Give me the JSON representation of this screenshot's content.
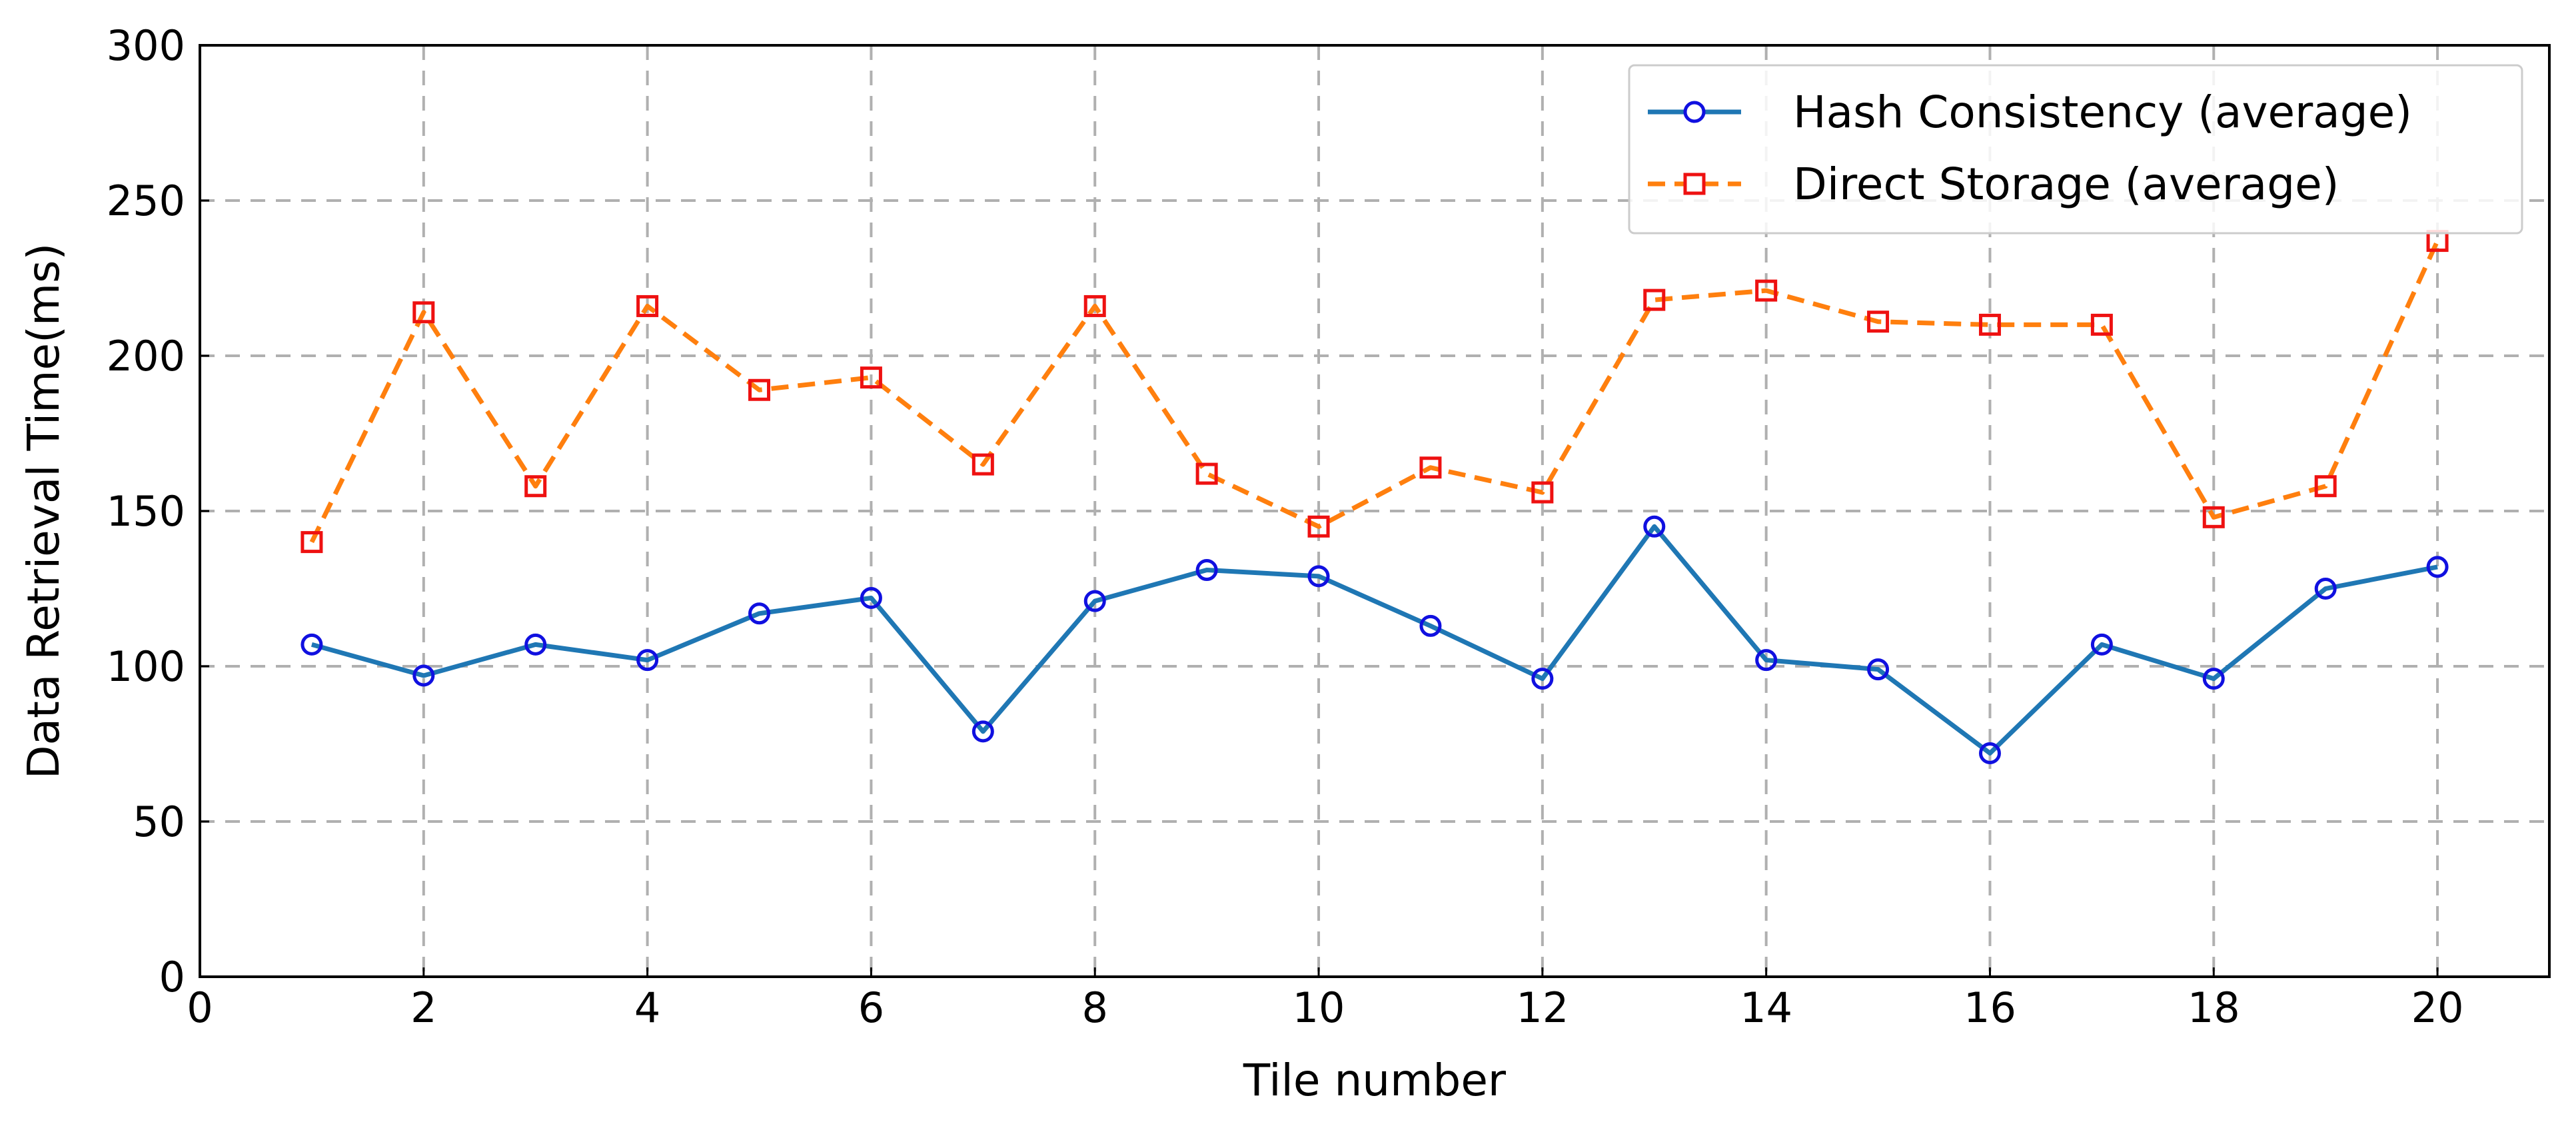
{
  "chart_data": {
    "type": "line",
    "title": "",
    "xlabel": "Tile number",
    "ylabel": "Data Retrieval Time(ms)",
    "xlim": [
      0,
      21
    ],
    "ylim": [
      0,
      300
    ],
    "x_ticks": [
      0,
      2,
      4,
      6,
      8,
      10,
      12,
      14,
      16,
      18,
      20
    ],
    "y_ticks": [
      0,
      50,
      100,
      150,
      200,
      250,
      300
    ],
    "grid": true,
    "legend_position": "top-right",
    "x": [
      1,
      2,
      3,
      4,
      5,
      6,
      7,
      8,
      9,
      10,
      11,
      12,
      13,
      14,
      15,
      16,
      17,
      18,
      19,
      20
    ],
    "series": [
      {
        "name": "Hash Consistency (average)",
        "line_color": "#1f77b4",
        "marker_color": "#1010e0",
        "line_style": "solid",
        "marker": "circle",
        "values": [
          107,
          97,
          107,
          102,
          117,
          122,
          79,
          121,
          131,
          129,
          113,
          96,
          145,
          102,
          99,
          72,
          107,
          96,
          125,
          132
        ]
      },
      {
        "name": "Direct Storage (average)",
        "line_color": "#ff7f0e",
        "marker_color": "#ee1111",
        "line_style": "dashed",
        "marker": "square",
        "values": [
          140,
          214,
          158,
          216,
          189,
          193,
          165,
          216,
          162,
          145,
          164,
          156,
          218,
          221,
          211,
          210,
          210,
          148,
          158,
          237
        ]
      }
    ]
  }
}
